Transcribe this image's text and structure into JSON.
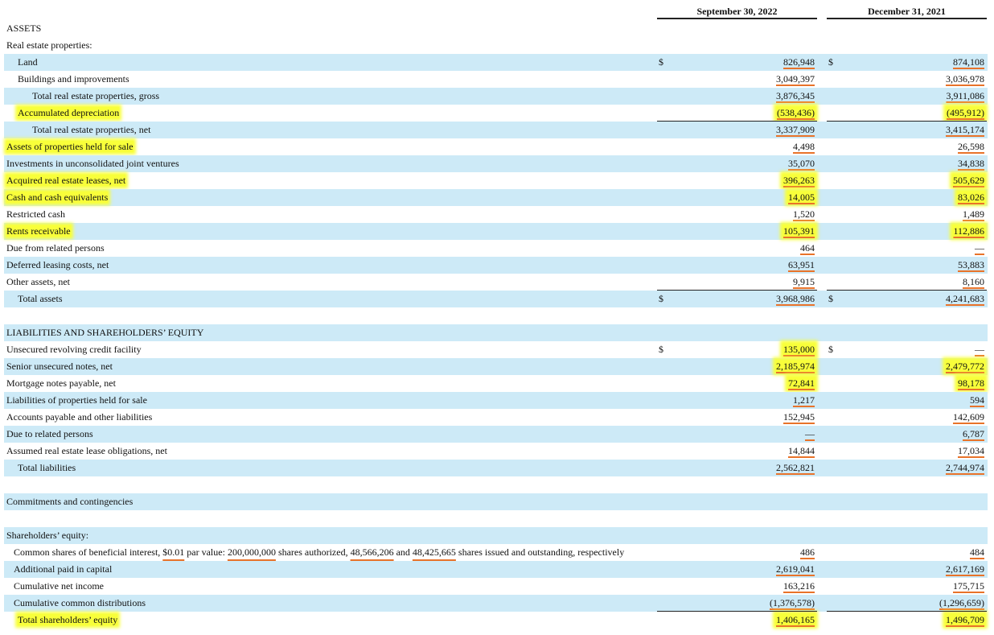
{
  "header": {
    "columns": [
      "September 30, 2022",
      "December 31, 2021"
    ]
  },
  "sections": [
    {
      "rows": [
        {
          "label": "ASSETS"
        },
        {
          "label": "Real estate properties:"
        },
        {
          "label": "Land",
          "currency": [
            "$",
            "$"
          ],
          "values": [
            "826,948",
            "874,108"
          ]
        },
        {
          "label": "Buildings and improvements",
          "values": [
            "3,049,397",
            "3,036,978"
          ]
        },
        {
          "label": "Total real estate properties, gross",
          "values": [
            "3,876,345",
            "3,911,086"
          ]
        },
        {
          "label": "Accumulated depreciation",
          "values": [
            "(538,436)",
            "(495,912)"
          ]
        },
        {
          "label": "Total real estate properties, net",
          "values": [
            "3,337,909",
            "3,415,174"
          ]
        },
        {
          "label": "Assets of properties held for sale",
          "values": [
            "4,498",
            "26,598"
          ]
        },
        {
          "label": "Investments in unconsolidated joint ventures",
          "values": [
            "35,070",
            "34,838"
          ]
        },
        {
          "label": "Acquired real estate leases, net",
          "values": [
            "396,263",
            "505,629"
          ]
        },
        {
          "label": "Cash and cash equivalents",
          "values": [
            "14,005",
            "83,026"
          ]
        },
        {
          "label": "Restricted cash",
          "values": [
            "1,520",
            "1,489"
          ]
        },
        {
          "label": "Rents receivable",
          "values": [
            "105,391",
            "112,886"
          ]
        },
        {
          "label": "Due from related persons",
          "values": [
            "464",
            "—"
          ]
        },
        {
          "label": "Deferred leasing costs, net",
          "values": [
            "63,951",
            "53,883"
          ]
        },
        {
          "label": "Other assets, net",
          "values": [
            "9,915",
            "8,160"
          ]
        },
        {
          "label": "Total assets",
          "currency": [
            "$",
            "$"
          ],
          "values": [
            "3,968,986",
            "4,241,683"
          ]
        }
      ]
    },
    {
      "rows": [
        {
          "label": "LIABILITIES AND SHAREHOLDERS’ EQUITY"
        },
        {
          "label": "Unsecured revolving credit facility",
          "currency": [
            "$",
            "$"
          ],
          "values": [
            "135,000",
            "—"
          ]
        },
        {
          "label": "Senior unsecured notes, net",
          "values": [
            "2,185,974",
            "2,479,772"
          ]
        },
        {
          "label": "Mortgage notes payable, net",
          "values": [
            "72,841",
            "98,178"
          ]
        },
        {
          "label": "Liabilities of properties held for sale",
          "values": [
            "1,217",
            "594"
          ]
        },
        {
          "label": "Accounts payable and other liabilities",
          "values": [
            "152,945",
            "142,609"
          ]
        },
        {
          "label": "Due to related persons",
          "values": [
            "—",
            "6,787"
          ]
        },
        {
          "label": "Assumed real estate lease obligations, net",
          "values": [
            "14,844",
            "17,034"
          ]
        },
        {
          "label": "Total liabilities",
          "values": [
            "2,562,821",
            "2,744,974"
          ]
        }
      ]
    },
    {
      "rows": [
        {
          "label": "Commitments and contingencies"
        }
      ]
    },
    {
      "rows": [
        {
          "label": "Shareholders’ equity:"
        },
        {
          "label_parts": [
            "Common shares of beneficial interest, ",
            "$0.01",
            " par value: ",
            "200,000,000",
            " shares authorized, ",
            "48,566,206",
            " and ",
            "48,425,665",
            " shares issued and outstanding, respectively"
          ],
          "values": [
            "486",
            "484"
          ]
        },
        {
          "label": "Additional paid in capital",
          "values": [
            "2,619,041",
            "2,617,169"
          ]
        },
        {
          "label": "Cumulative net income",
          "values": [
            "163,216",
            "175,715"
          ]
        },
        {
          "label": "Cumulative common distributions",
          "values": [
            "(1,376,578)",
            "(1,296,659)"
          ]
        },
        {
          "label": "Total shareholders’ equity",
          "values": [
            "1,406,165",
            "1,496,709"
          ]
        }
      ]
    }
  ]
}
